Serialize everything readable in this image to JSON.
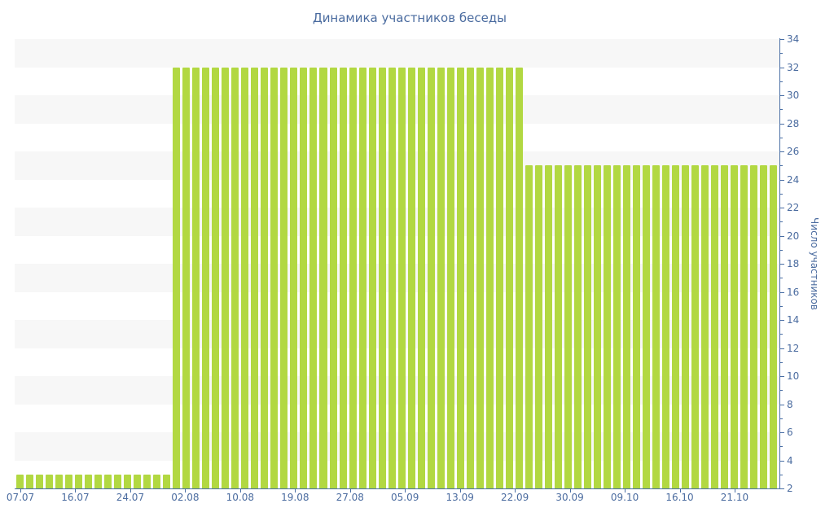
{
  "title": "Динамика участников беседы",
  "colors": {
    "bar": "#b2d842",
    "axis_line": "#4a6fa5",
    "text": "#4a6b9f",
    "band_gray": "#f7f7f7",
    "band_white": "#ffffff",
    "background": "#ffffff"
  },
  "chart_data": {
    "type": "bar",
    "title": "Динамика участников беседы",
    "xlabel": "",
    "ylabel": "Число участников",
    "legend": "none",
    "grid": "alternating horizontal bands, no gridlines",
    "x_tick_labels": [
      "07.07",
      "16.07",
      "24.07",
      "02.08",
      "10.08",
      "19.08",
      "27.08",
      "05.09",
      "13.09",
      "22.09",
      "30.09",
      "09.10",
      "16.10",
      "21.10"
    ],
    "y_axis": {
      "min": 2,
      "max": 34,
      "tick_step": 2,
      "minor_tick_step": 1,
      "side": "right"
    },
    "y_tick_labels": [
      34,
      32,
      30,
      28,
      26,
      24,
      22,
      20,
      18,
      16,
      14,
      12,
      10,
      8,
      6,
      4,
      2
    ],
    "segments": [
      {
        "value": 3,
        "bars": 16,
        "approx_dates": "07.07 — 31.07"
      },
      {
        "value": 32,
        "bars": 36,
        "approx_dates": "31.07 — 20.09"
      },
      {
        "value": 25,
        "bars": 26,
        "approx_dates": "20.09 — 26.10"
      }
    ],
    "values": [
      3,
      3,
      3,
      3,
      3,
      3,
      3,
      3,
      3,
      3,
      3,
      3,
      3,
      3,
      3,
      3,
      32,
      32,
      32,
      32,
      32,
      32,
      32,
      32,
      32,
      32,
      32,
      32,
      32,
      32,
      32,
      32,
      32,
      32,
      32,
      32,
      32,
      32,
      32,
      32,
      32,
      32,
      32,
      32,
      32,
      32,
      32,
      32,
      32,
      32,
      32,
      32,
      25,
      25,
      25,
      25,
      25,
      25,
      25,
      25,
      25,
      25,
      25,
      25,
      25,
      25,
      25,
      25,
      25,
      25,
      25,
      25,
      25,
      25,
      25,
      25,
      25,
      25
    ]
  }
}
